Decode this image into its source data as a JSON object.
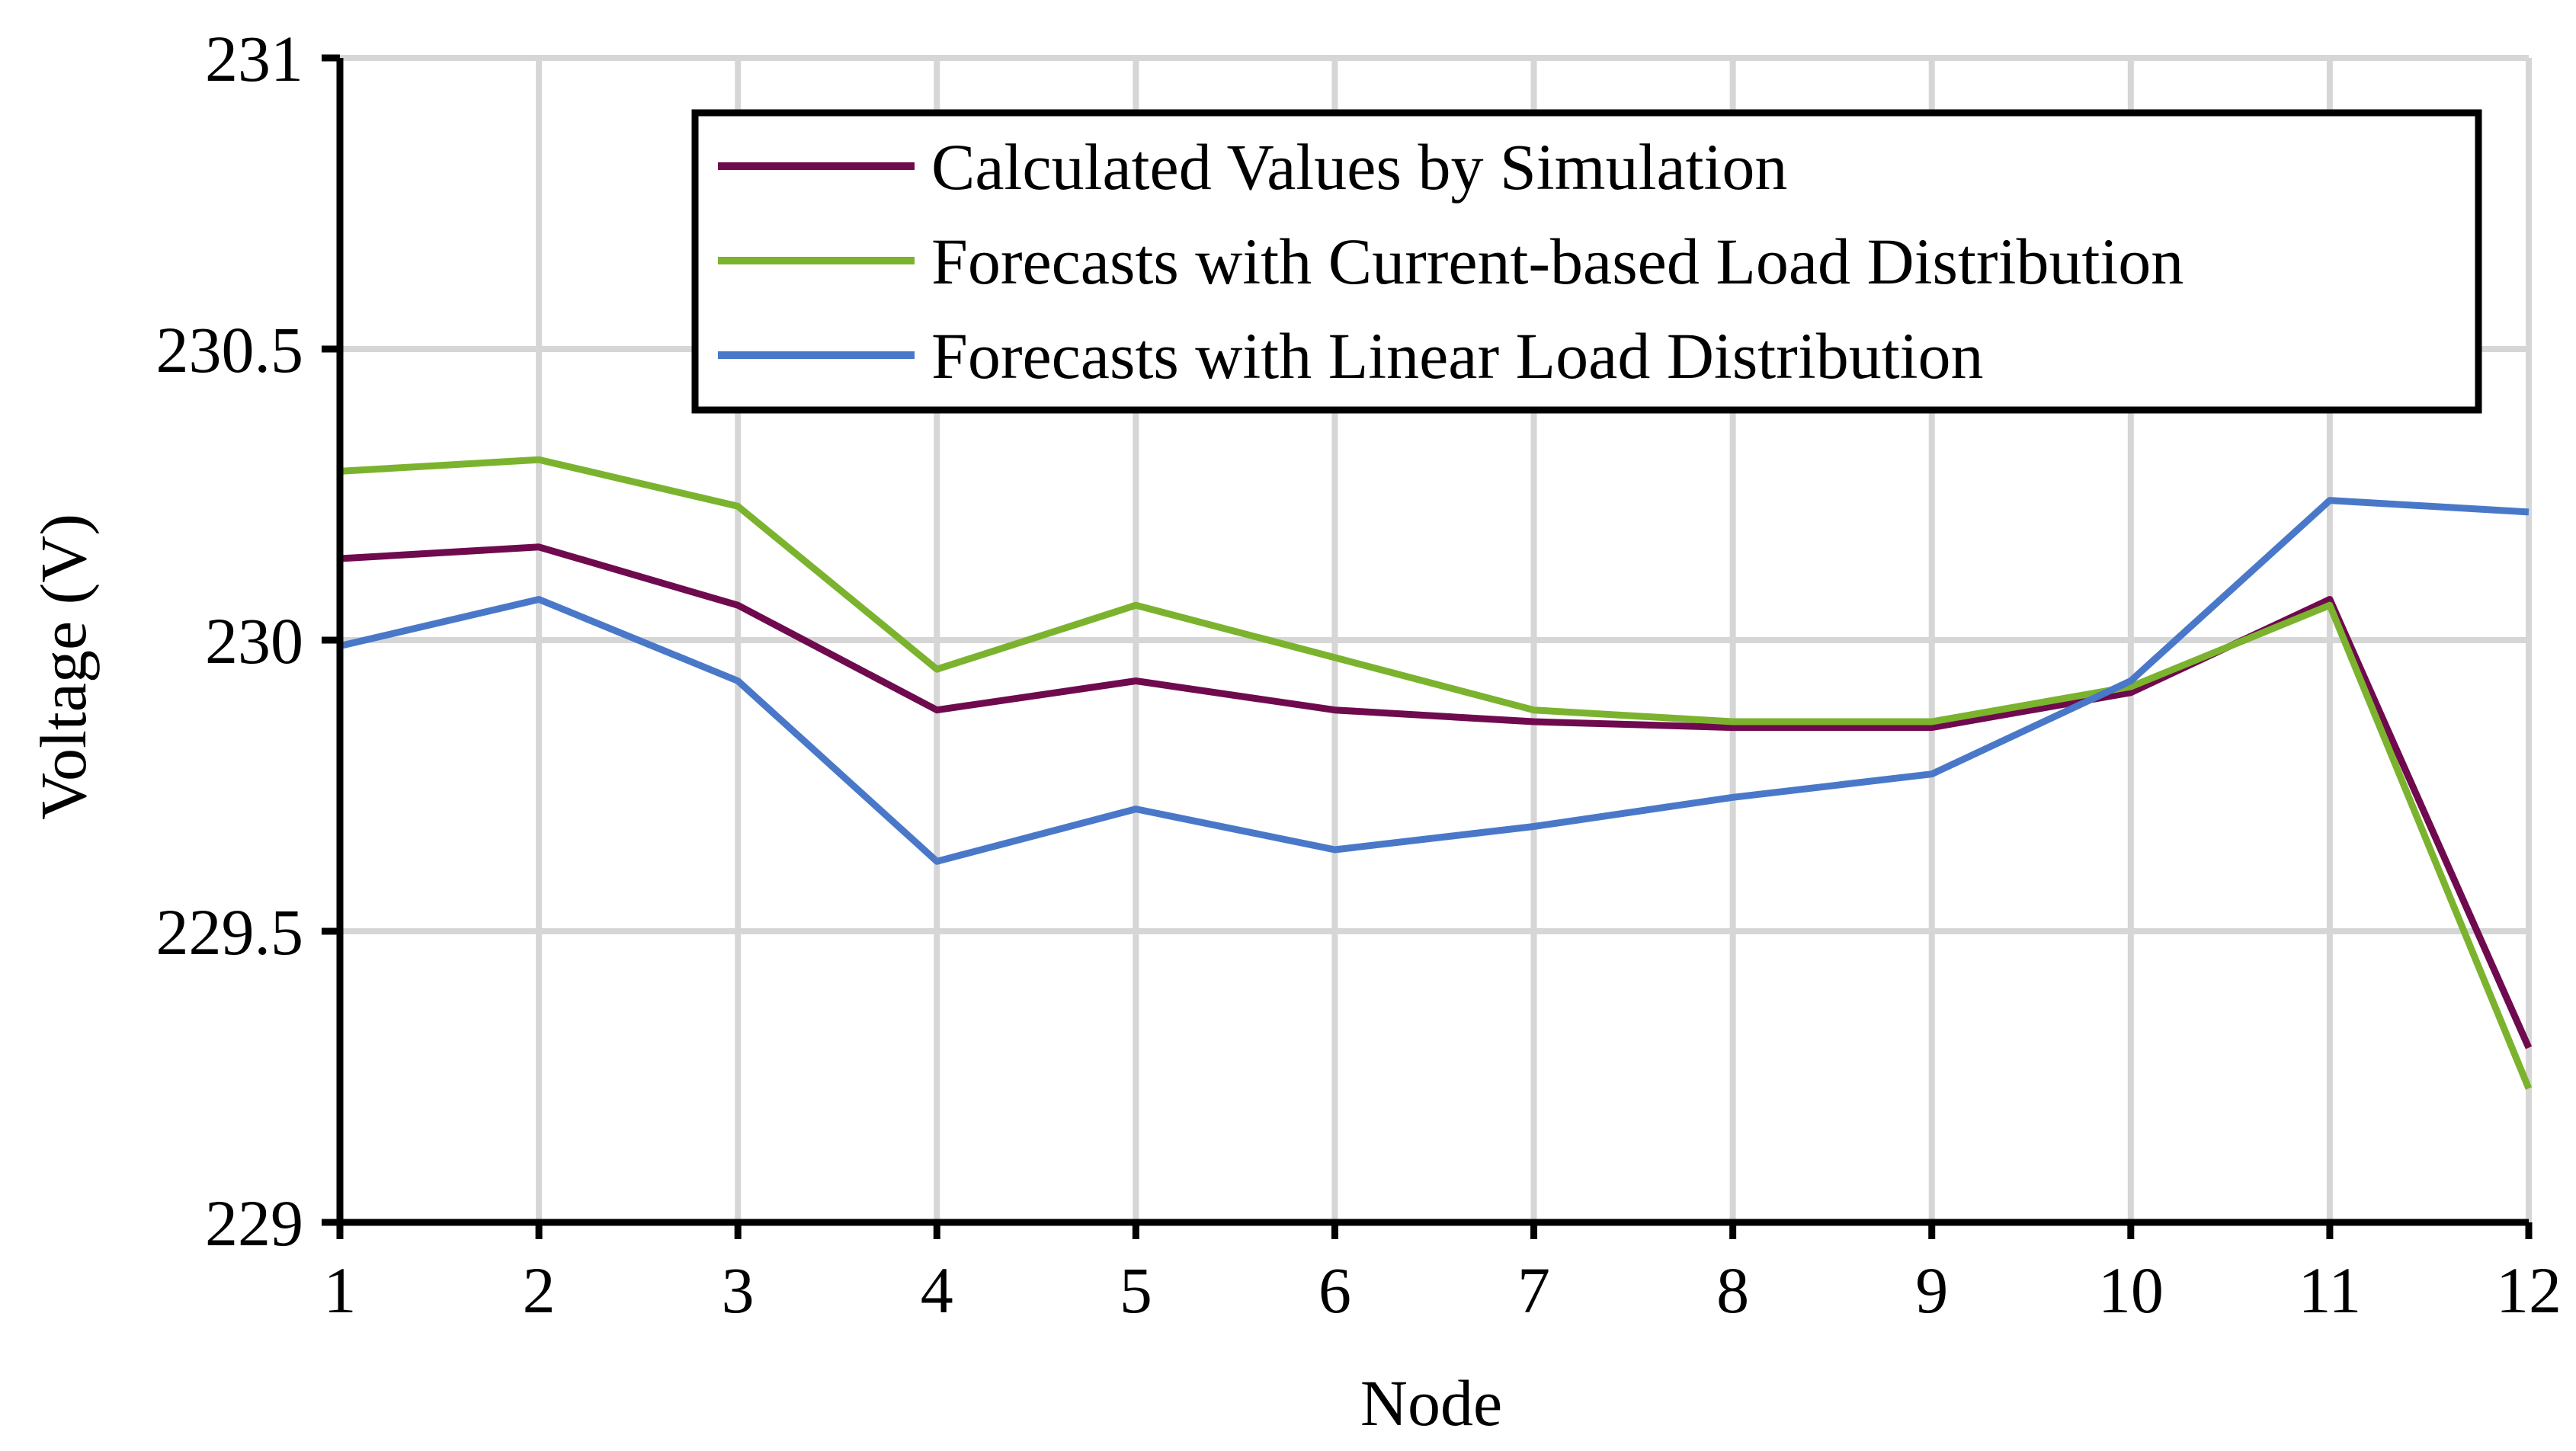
{
  "chart_data": {
    "type": "line",
    "categories": [
      "1",
      "2",
      "3",
      "4",
      "5",
      "6",
      "7",
      "8",
      "9",
      "10",
      "11",
      "12"
    ],
    "xlabel": "Node",
    "ylabel": "Voltage (V)",
    "ylim": [
      229,
      231
    ],
    "yticks": [
      229,
      229.5,
      230,
      230.5,
      231
    ],
    "ytick_labels": [
      "229",
      "229.5",
      "230",
      "230.5",
      "231"
    ],
    "grid": true,
    "legend_position": "top-right",
    "series": [
      {
        "name": "Calculated Values by Simulation",
        "color": "#6f0a4e",
        "values": [
          230.14,
          230.16,
          230.06,
          229.88,
          229.93,
          229.88,
          229.86,
          229.85,
          229.85,
          229.91,
          230.07,
          229.3
        ]
      },
      {
        "name": "Forecasts with Current-based Load Distribution",
        "color": "#7bb32e",
        "values": [
          230.29,
          230.31,
          230.23,
          229.95,
          230.06,
          229.97,
          229.88,
          229.86,
          229.86,
          229.92,
          230.06,
          229.23
        ]
      },
      {
        "name": "Forecasts with Linear Load Distribution",
        "color": "#4a78c9",
        "values": [
          229.99,
          230.07,
          229.93,
          229.62,
          229.71,
          229.64,
          229.68,
          229.73,
          229.77,
          229.93,
          230.24,
          230.22
        ]
      }
    ]
  }
}
